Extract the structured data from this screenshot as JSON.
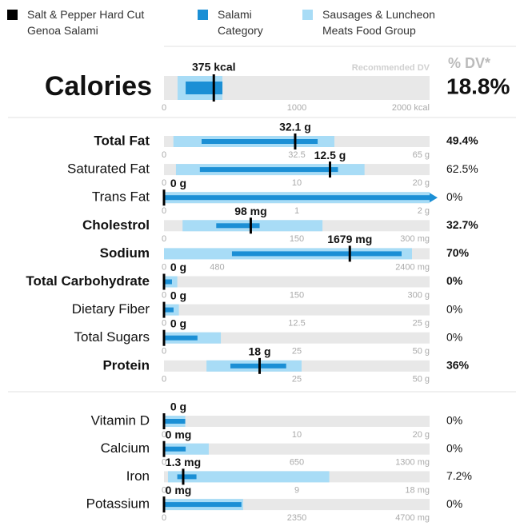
{
  "chart_data": {
    "type": "nutrition",
    "legend": [
      {
        "name": "Salt & Pepper Hard Cut Genoa Salami",
        "color": "#000000"
      },
      {
        "name": "Salami Category",
        "color": "#1b8fd5"
      },
      {
        "name": "Sausages & Luncheon Meats Food Group",
        "color": "#a8dcf6"
      }
    ],
    "dv_header": "% DV*",
    "recommended_label": "Recommended DV",
    "calories": {
      "label": "Calories",
      "value": 375,
      "value_label": "375 kcal",
      "category": [
        163,
        440
      ],
      "group": [
        102,
        440
      ],
      "xlim": [
        0,
        2000
      ],
      "xticks": [
        0,
        1000,
        {
          "value": 2000,
          "label": "2000 kcal"
        }
      ],
      "dv": 18.8,
      "dv_label": "18.8%"
    },
    "sections": [
      [
        {
          "label": "Total Fat",
          "bold": true,
          "value": 32.1,
          "value_label": "32.1 g",
          "category": [
            9.2,
            37.6
          ],
          "group": [
            2.3,
            41.7
          ],
          "xlim": [
            0,
            65
          ],
          "xticks": [
            0,
            32.5,
            {
              "value": 65,
              "label": "65 g"
            }
          ],
          "dv": 49.4,
          "dv_label": "49.4%"
        },
        {
          "label": "Saturated Fat",
          "bold": false,
          "value": 12.5,
          "value_label": "12.5 g",
          "category": [
            2.7,
            13.1
          ],
          "group": [
            0.9,
            15.1
          ],
          "xlim": [
            0,
            20
          ],
          "xticks": [
            0,
            10,
            {
              "value": 20,
              "label": "20 g"
            }
          ],
          "dv": 62.5,
          "dv_label": "62.5%"
        },
        {
          "label": "Trans Fat",
          "bold": false,
          "value": 0,
          "value_label": "0 g",
          "category": [
            0,
            3
          ],
          "group": [
            0,
            3
          ],
          "xlim": [
            0,
            2
          ],
          "xticks": [
            0,
            1,
            {
              "value": 2,
              "label": "2 g"
            }
          ],
          "dv": 0,
          "dv_label": "0%"
        },
        {
          "label": "Cholestrol",
          "bold": true,
          "value": 98,
          "value_label": "98 mg",
          "category": [
            59,
            108
          ],
          "group": [
            21,
            179
          ],
          "xlim": [
            0,
            300
          ],
          "xticks": [
            0,
            150,
            {
              "value": 300,
              "label": "300 mg"
            }
          ],
          "dv": 32.7,
          "dv_label": "32.7%"
        },
        {
          "label": "Sodium",
          "bold": true,
          "value": 1679,
          "value_label": "1679 mg",
          "category": [
            614,
            2147
          ],
          "group": [
            0,
            2241
          ],
          "xlim": [
            0,
            2400
          ],
          "xticks": [
            0,
            480,
            {
              "value": 2400,
              "label": "2400 mg"
            }
          ],
          "dv": 70,
          "dv_label": "70%"
        },
        {
          "label": "Total Carbohydrate",
          "bold": true,
          "value": 0,
          "value_label": "0 g",
          "category": [
            0,
            9
          ],
          "group": [
            0,
            15
          ],
          "xlim": [
            0,
            300
          ],
          "xticks": [
            0,
            150,
            {
              "value": 300,
              "label": "300 g"
            }
          ],
          "dv": 0,
          "dv_label": "0%"
        },
        {
          "label": "Dietary Fiber",
          "bold": false,
          "value": 0,
          "value_label": "0 g",
          "category": [
            0,
            0.9
          ],
          "group": [
            0,
            1.4
          ],
          "xlim": [
            0,
            25
          ],
          "xticks": [
            0,
            12.5,
            {
              "value": 25,
              "label": "25 g"
            }
          ],
          "dv": 0,
          "dv_label": "0%"
        },
        {
          "label": "Total Sugars",
          "bold": false,
          "value": 0,
          "value_label": "0 g",
          "category": [
            0,
            6.3
          ],
          "group": [
            0,
            10.7
          ],
          "xlim": [
            0,
            50
          ],
          "xticks": [
            0,
            25,
            {
              "value": 50,
              "label": "50 g"
            }
          ],
          "dv": 0,
          "dv_label": "0%"
        },
        {
          "label": "Protein",
          "bold": true,
          "value": 18,
          "value_label": "18 g",
          "category": [
            12.5,
            23
          ],
          "group": [
            8,
            25.9
          ],
          "xlim": [
            0,
            50
          ],
          "xticks": [
            0,
            25,
            {
              "value": 50,
              "label": "50 g"
            }
          ],
          "dv": 36,
          "dv_label": "36%"
        }
      ],
      [
        {
          "label": "Vitamin D",
          "bold": false,
          "value": 0,
          "value_label": "0 g",
          "category": [
            0,
            1.6
          ],
          "group": [
            0,
            1.6
          ],
          "xlim": [
            0,
            20
          ],
          "xticks": [
            0,
            10,
            {
              "value": 20,
              "label": "20 g"
            }
          ],
          "dv": 0,
          "dv_label": "0%"
        },
        {
          "label": "Calcium",
          "bold": false,
          "value": 0,
          "value_label": "0 mg",
          "category": [
            0,
            106
          ],
          "group": [
            0,
            219
          ],
          "xlim": [
            0,
            1300
          ],
          "xticks": [
            0,
            650,
            {
              "value": 1300,
              "label": "1300 mg"
            }
          ],
          "dv": 0,
          "dv_label": "0%"
        },
        {
          "label": "Iron",
          "bold": false,
          "value": 1.3,
          "value_label": "1.3 mg",
          "category": [
            0.9,
            2.2
          ],
          "group": [
            0.27,
            11.2
          ],
          "xlim": [
            0,
            18
          ],
          "xticks": [
            0,
            9,
            {
              "value": 18,
              "label": "18 mg"
            }
          ],
          "dv": 7.2,
          "dv_label": "7.2%"
        },
        {
          "label": "Potassium",
          "bold": false,
          "value": 0,
          "value_label": "0 mg",
          "category": [
            0,
            1370
          ],
          "group": [
            0,
            1400
          ],
          "xlim": [
            0,
            4700
          ],
          "xticks": [
            0,
            2350,
            {
              "value": 4700,
              "label": "4700 mg"
            }
          ],
          "dv": 0,
          "dv_label": "0%"
        }
      ]
    ]
  }
}
